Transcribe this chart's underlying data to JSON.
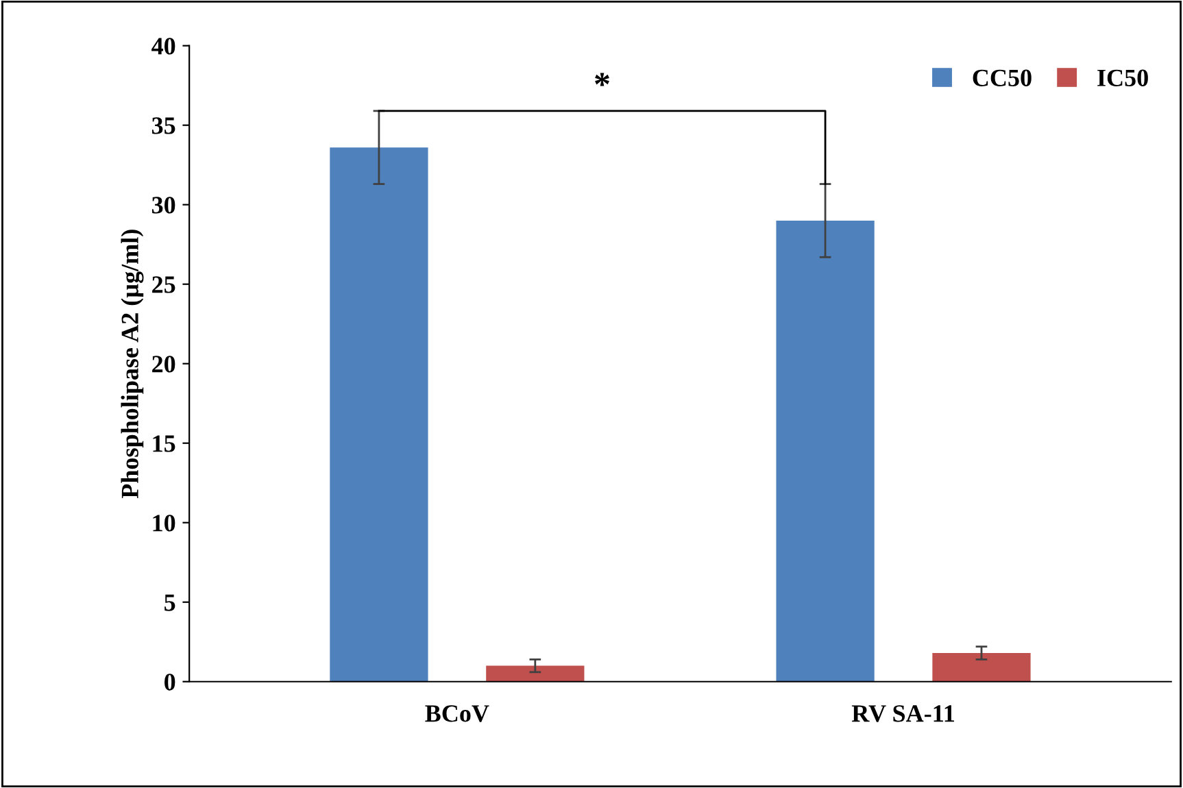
{
  "chart_data": {
    "type": "bar",
    "ylabel": "Phospholipase A2 (µg/ml)",
    "categories": [
      "BCoV",
      "RV SA-11"
    ],
    "series": [
      {
        "name": "CC50",
        "color": "#4f81bd",
        "values": [
          33.6,
          29.0
        ],
        "errors": [
          2.3,
          2.3
        ]
      },
      {
        "name": "IC50",
        "color": "#c0504d",
        "values": [
          1.0,
          1.8
        ],
        "errors": [
          0.4,
          0.4
        ]
      }
    ],
    "ylim": [
      0,
      40
    ],
    "yticks": [
      0,
      5,
      10,
      15,
      20,
      25,
      30,
      35,
      40
    ],
    "annotations": [
      "*"
    ],
    "legend": "top right",
    "grid": false
  }
}
